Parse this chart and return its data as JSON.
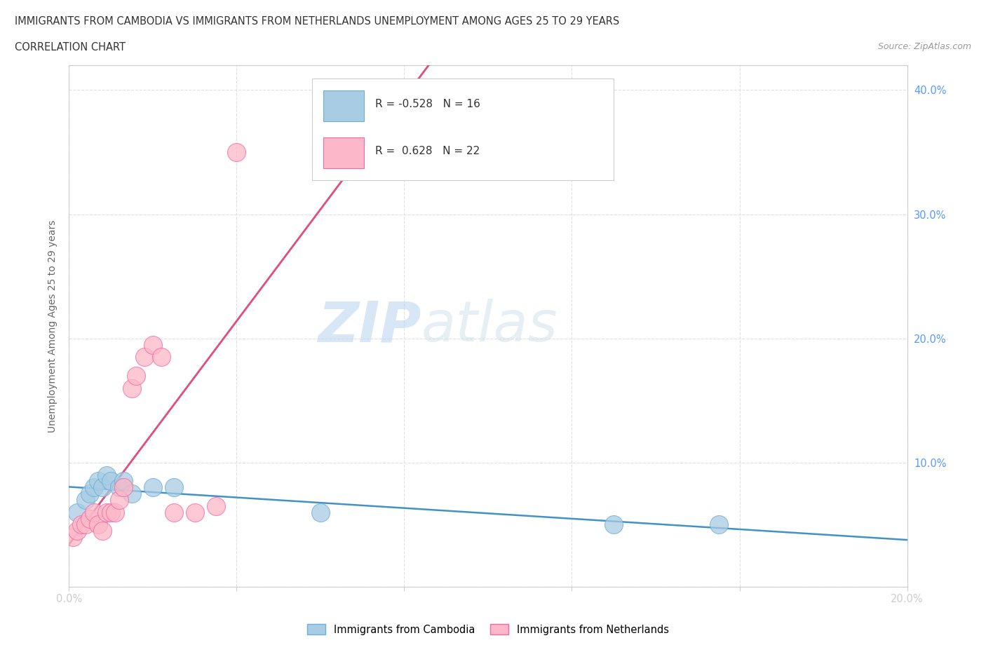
{
  "title_line1": "IMMIGRANTS FROM CAMBODIA VS IMMIGRANTS FROM NETHERLANDS UNEMPLOYMENT AMONG AGES 25 TO 29 YEARS",
  "title_line2": "CORRELATION CHART",
  "source_text": "Source: ZipAtlas.com",
  "ylabel": "Unemployment Among Ages 25 to 29 years",
  "xlim": [
    0.0,
    0.2
  ],
  "ylim": [
    0.0,
    0.42
  ],
  "xticks": [
    0.0,
    0.04,
    0.08,
    0.12,
    0.16,
    0.2
  ],
  "xticklabels": [
    "0.0%",
    "",
    "",
    "",
    "",
    "20.0%"
  ],
  "yticks": [
    0.0,
    0.1,
    0.2,
    0.3,
    0.4
  ],
  "right_yticklabels": [
    "",
    "10.0%",
    "20.0%",
    "30.0%",
    "40.0%"
  ],
  "watermark_zip": "ZIP",
  "watermark_atlas": "atlas",
  "cambodia_color": "#a8cce4",
  "cambodia_edge": "#6baed6",
  "netherlands_color": "#fcb8c8",
  "netherlands_edge": "#f768a1",
  "cambodia_R": -0.528,
  "cambodia_N": 16,
  "netherlands_R": 0.628,
  "netherlands_N": 22,
  "legend_label_cambodia": "Immigrants from Cambodia",
  "legend_label_netherlands": "Immigrants from Netherlands",
  "cambodia_x": [
    0.002,
    0.004,
    0.005,
    0.006,
    0.007,
    0.008,
    0.009,
    0.01,
    0.012,
    0.013,
    0.015,
    0.02,
    0.025,
    0.06,
    0.13,
    0.155
  ],
  "cambodia_y": [
    0.06,
    0.07,
    0.075,
    0.08,
    0.085,
    0.08,
    0.09,
    0.085,
    0.08,
    0.085,
    0.075,
    0.08,
    0.08,
    0.06,
    0.05,
    0.05
  ],
  "netherlands_x": [
    0.001,
    0.002,
    0.003,
    0.004,
    0.005,
    0.006,
    0.007,
    0.008,
    0.009,
    0.01,
    0.011,
    0.012,
    0.013,
    0.015,
    0.016,
    0.018,
    0.02,
    0.022,
    0.025,
    0.03,
    0.035,
    0.04
  ],
  "netherlands_y": [
    0.04,
    0.045,
    0.05,
    0.05,
    0.055,
    0.06,
    0.05,
    0.045,
    0.06,
    0.06,
    0.06,
    0.07,
    0.08,
    0.16,
    0.17,
    0.185,
    0.195,
    0.185,
    0.06,
    0.06,
    0.065,
    0.35
  ],
  "background_color": "#ffffff",
  "grid_color": "#e0e0e0",
  "axis_color": "#cccccc",
  "tick_label_color": "#5599ff",
  "line_blue": "#4292c6",
  "line_pink": "#e05080"
}
